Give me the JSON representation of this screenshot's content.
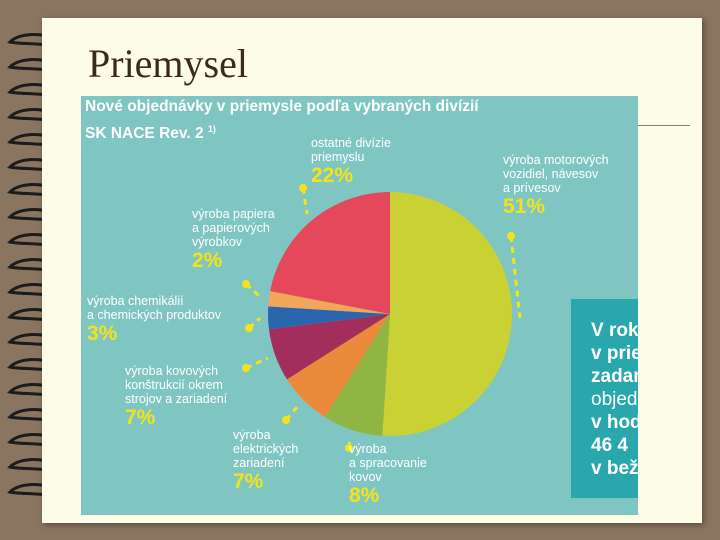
{
  "slide": {
    "title": "Priemysel"
  },
  "chart_data": {
    "type": "pie",
    "title": "Nové objednávky v priemysle podľa vybraných divízií",
    "subtitle": "SK NACE Rev. 2",
    "subtitle_sup": "1)",
    "slices": [
      {
        "label": "výroba motorových vozidiel, návesov a prívesov",
        "lines": [
          "výroba motorových",
          "vozidiel, návesov",
          "a prívesov"
        ],
        "value": 51,
        "pct_label": "51%",
        "color": "#c9d134"
      },
      {
        "label": "výroba a spracovanie kovov",
        "lines": [
          "výroba",
          "a spracovanie",
          "kovov"
        ],
        "value": 8,
        "pct_label": "8%",
        "color": "#8fb543"
      },
      {
        "label": "výroba elektrických zariadení",
        "lines": [
          "výroba",
          "elektrických",
          "zariadení"
        ],
        "value": 7,
        "pct_label": "7%",
        "color": "#ec8a3c"
      },
      {
        "label": "výroba kovových konštrukcií okrem strojov a zariadení",
        "lines": [
          "výroba kovových",
          "konštrukcií okrem",
          "strojov a zariadení"
        ],
        "value": 7,
        "pct_label": "7%",
        "color": "#a32e5c"
      },
      {
        "label": "výroba chemikálií a chemických produktov",
        "lines": [
          "výroba chemikálií",
          "a chemických produktov"
        ],
        "value": 3,
        "pct_label": "3%",
        "color": "#2a66ad"
      },
      {
        "label": "výroba papiera a papierových výrobkov",
        "lines": [
          "výroba papiera",
          "a papierových",
          "výrobkov"
        ],
        "value": 2,
        "pct_label": "2%",
        "color": "#f2a65a"
      },
      {
        "label": "ostatné divízie priemyslu",
        "lines": [
          "ostatné divízie",
          "priemyslu"
        ],
        "value": 22,
        "pct_label": "22%",
        "color": "#e5485a"
      }
    ],
    "colors": {
      "background": "#7fc6c2",
      "label_text": "#ffffff",
      "percent_text": "#f5e31a",
      "leader": "#f5e31a"
    }
  },
  "side_panel": {
    "lines": [
      "V rok",
      "v prie",
      "zadar",
      "objed",
      "v hod",
      "46 4",
      "v bež"
    ]
  }
}
